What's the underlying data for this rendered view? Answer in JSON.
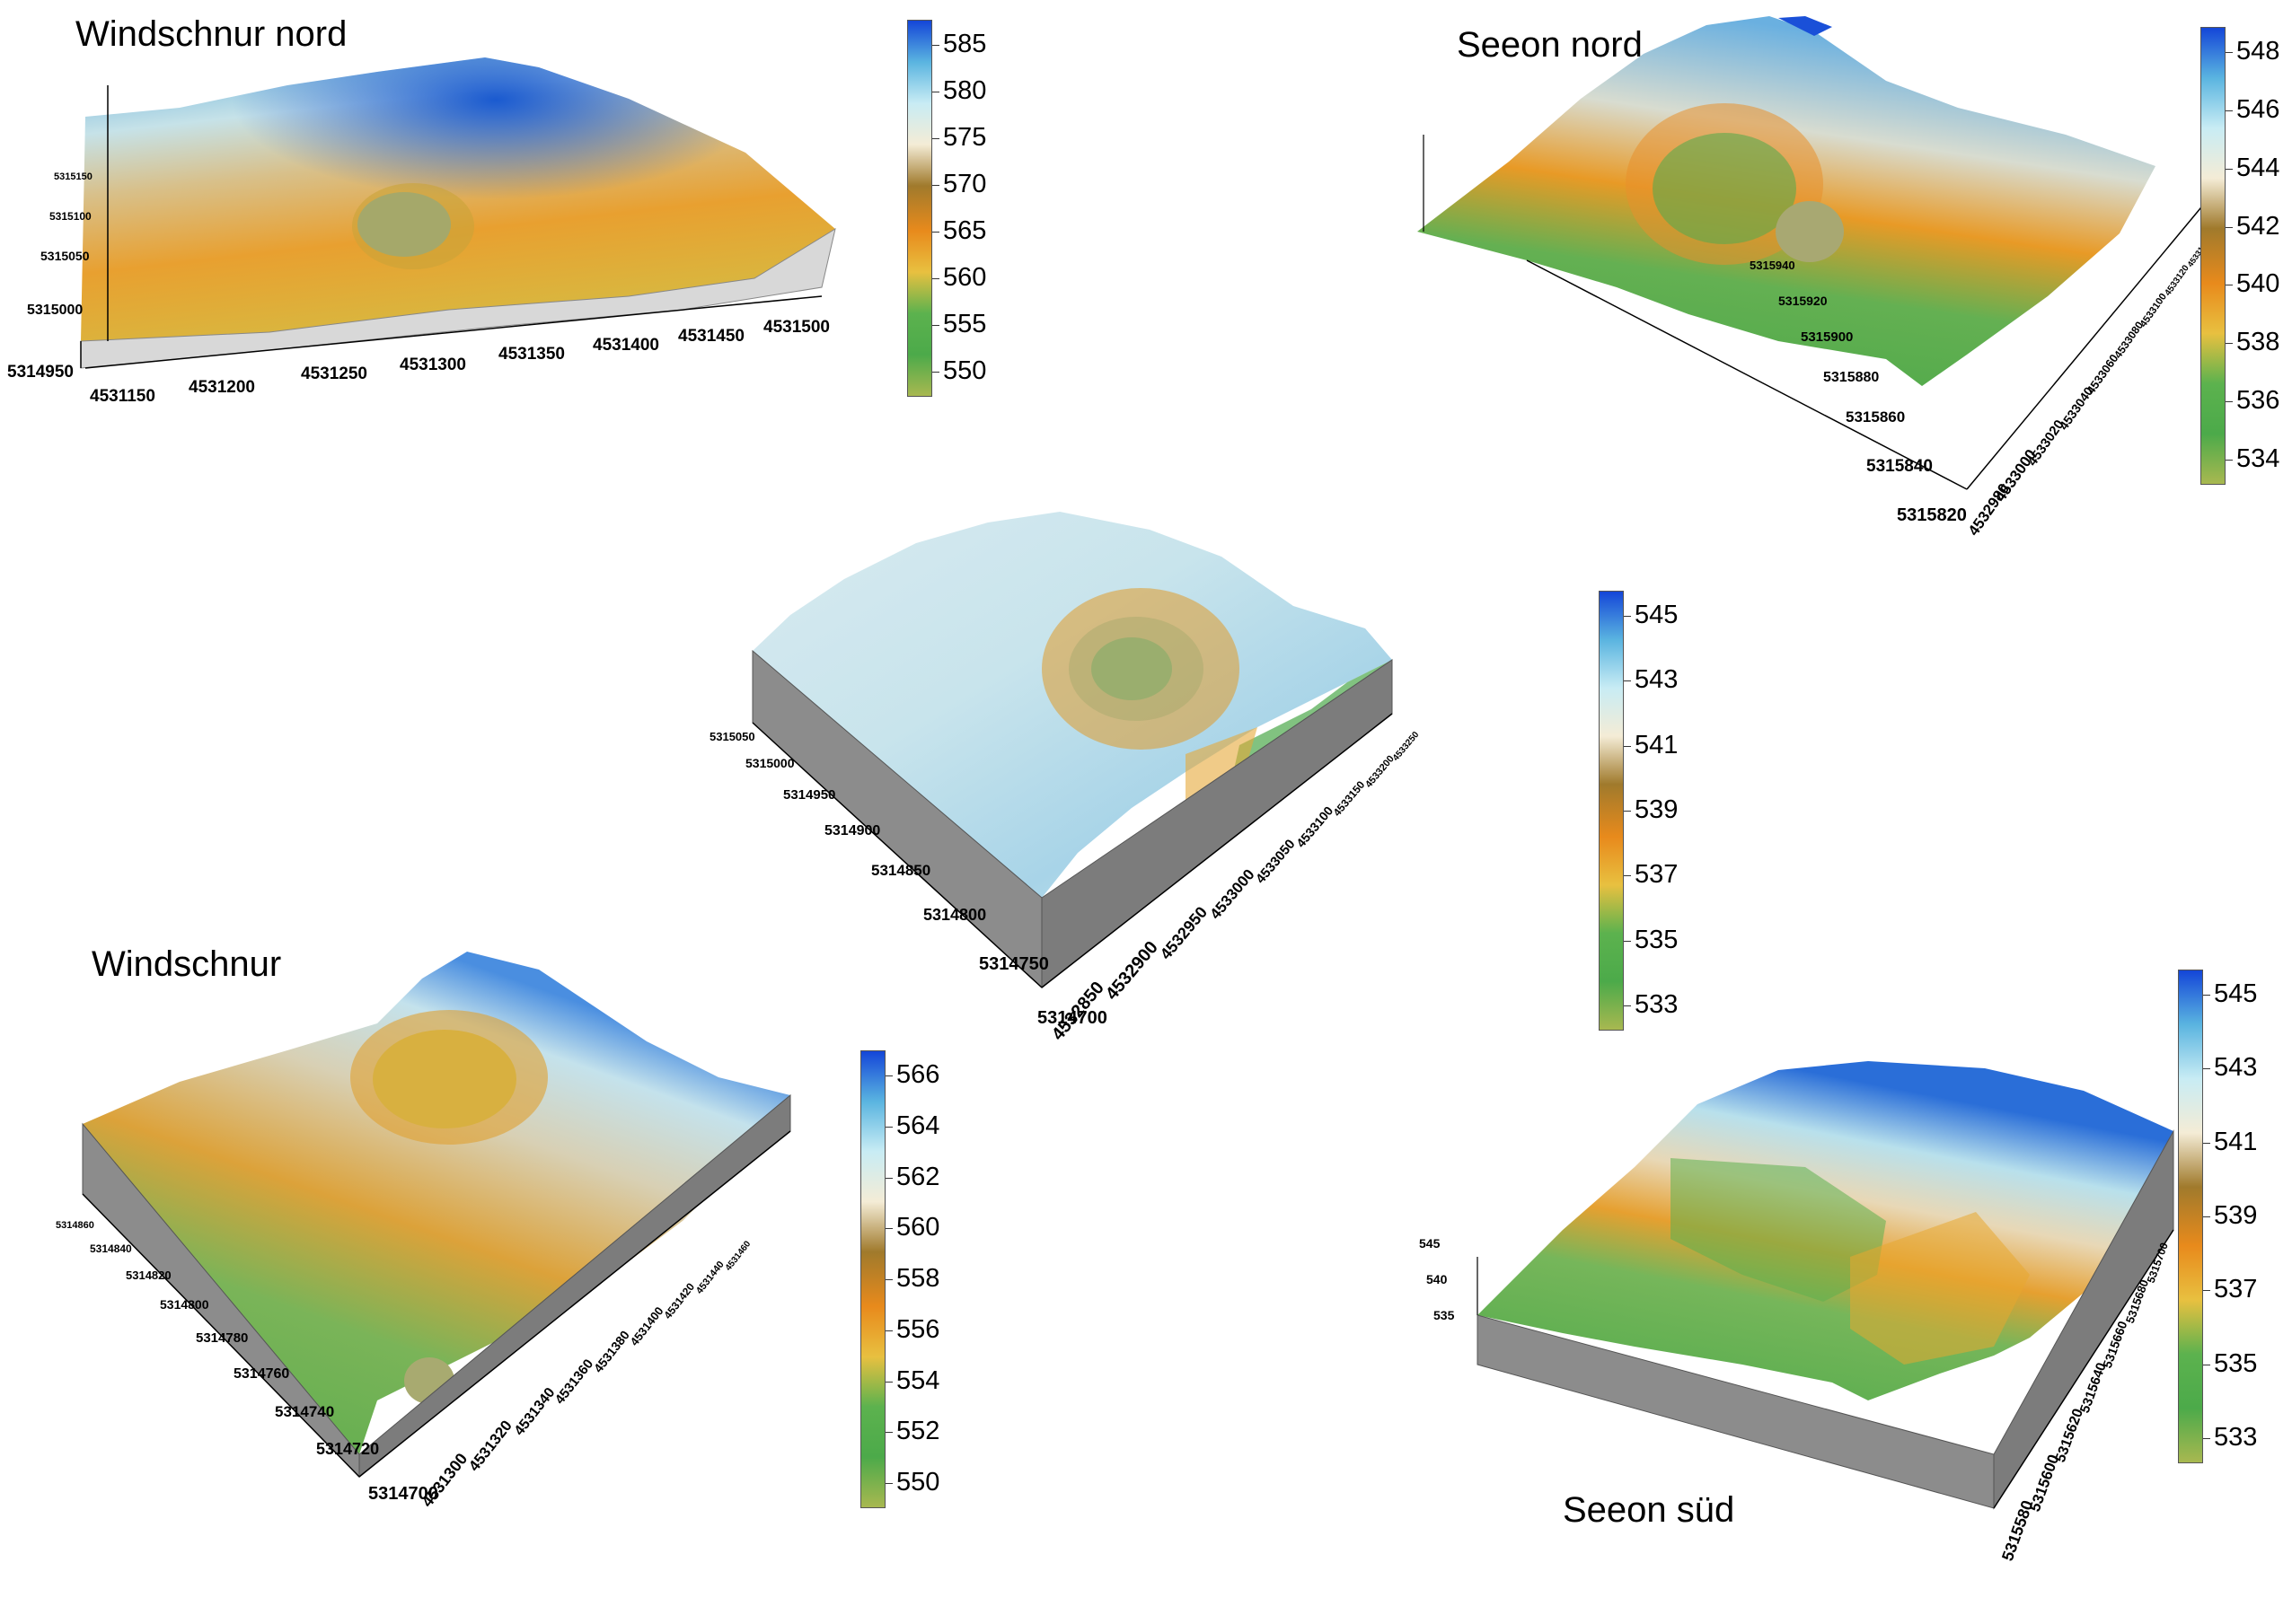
{
  "colors": {
    "ramp": [
      "#a8b850",
      "#4caa4a",
      "#5cb24e",
      "#e8c040",
      "#e88a1c",
      "#a07a2c",
      "#f4ecd6",
      "#c8ecf4",
      "#5ab4e0",
      "#1446d8"
    ],
    "side_face": "#8c8c8c",
    "side_face_light": "#d8d8d8"
  },
  "panels": [
    {
      "id": "windschnur-nord",
      "title": "Windschnur nord",
      "colorbar": {
        "labels": [
          "585",
          "580",
          "575",
          "570",
          "565",
          "560",
          "555",
          "550"
        ]
      },
      "axis_x_labels": [
        "4531150",
        "4531200",
        "4531250",
        "4531300",
        "4531350",
        "4531400",
        "4531450",
        "4531500"
      ],
      "axis_y_labels": [
        "5314950",
        "5315000",
        "5315050",
        "5315100",
        "5315150"
      ]
    },
    {
      "id": "seeon-nord",
      "title": "Seeon nord",
      "colorbar": {
        "labels": [
          "548",
          "546",
          "544",
          "542",
          "540",
          "538",
          "536",
          "534"
        ]
      },
      "axis_x_labels": [
        "4532980",
        "4533000",
        "4533020",
        "4533040",
        "4533060",
        "4533080",
        "4533100",
        "4533120",
        "4533140"
      ],
      "axis_y_labels": [
        "5315820",
        "5315840",
        "5315860",
        "5315880",
        "5315900",
        "5315920",
        "5315940"
      ]
    },
    {
      "id": "center",
      "title": "",
      "colorbar": {
        "labels": [
          "545",
          "543",
          "541",
          "539",
          "537",
          "535",
          "533"
        ]
      },
      "axis_x_labels": [
        "4532850",
        "4532900",
        "4532950",
        "4533000",
        "4533050",
        "4533100",
        "4533150",
        "4533200",
        "4533250"
      ],
      "axis_y_labels": [
        "5314700",
        "5314750",
        "5314800",
        "5314850",
        "5314900",
        "5314950",
        "5315000",
        "5315050"
      ]
    },
    {
      "id": "windschnur",
      "title": "Windschnur",
      "colorbar": {
        "labels": [
          "566",
          "564",
          "562",
          "560",
          "558",
          "556",
          "554",
          "552",
          "550"
        ]
      },
      "axis_x_labels": [
        "4531300",
        "4531320",
        "4531340",
        "4531360",
        "4531380",
        "4531400",
        "4531420",
        "4531440",
        "4531460"
      ],
      "axis_y_labels": [
        "5314700",
        "5314720",
        "5314740",
        "5314760",
        "5314780",
        "5314800",
        "5314820",
        "5314840",
        "5314860"
      ]
    },
    {
      "id": "seeon-sued",
      "title": "Seeon süd",
      "colorbar": {
        "labels": [
          "545",
          "543",
          "541",
          "539",
          "537",
          "535",
          "533"
        ]
      },
      "axis_x_labels": [
        "5315580",
        "5315600",
        "5315620",
        "5315640",
        "5315660",
        "5315680",
        "5315700"
      ],
      "axis_z_labels": [
        "545",
        "540",
        "535"
      ]
    }
  ]
}
